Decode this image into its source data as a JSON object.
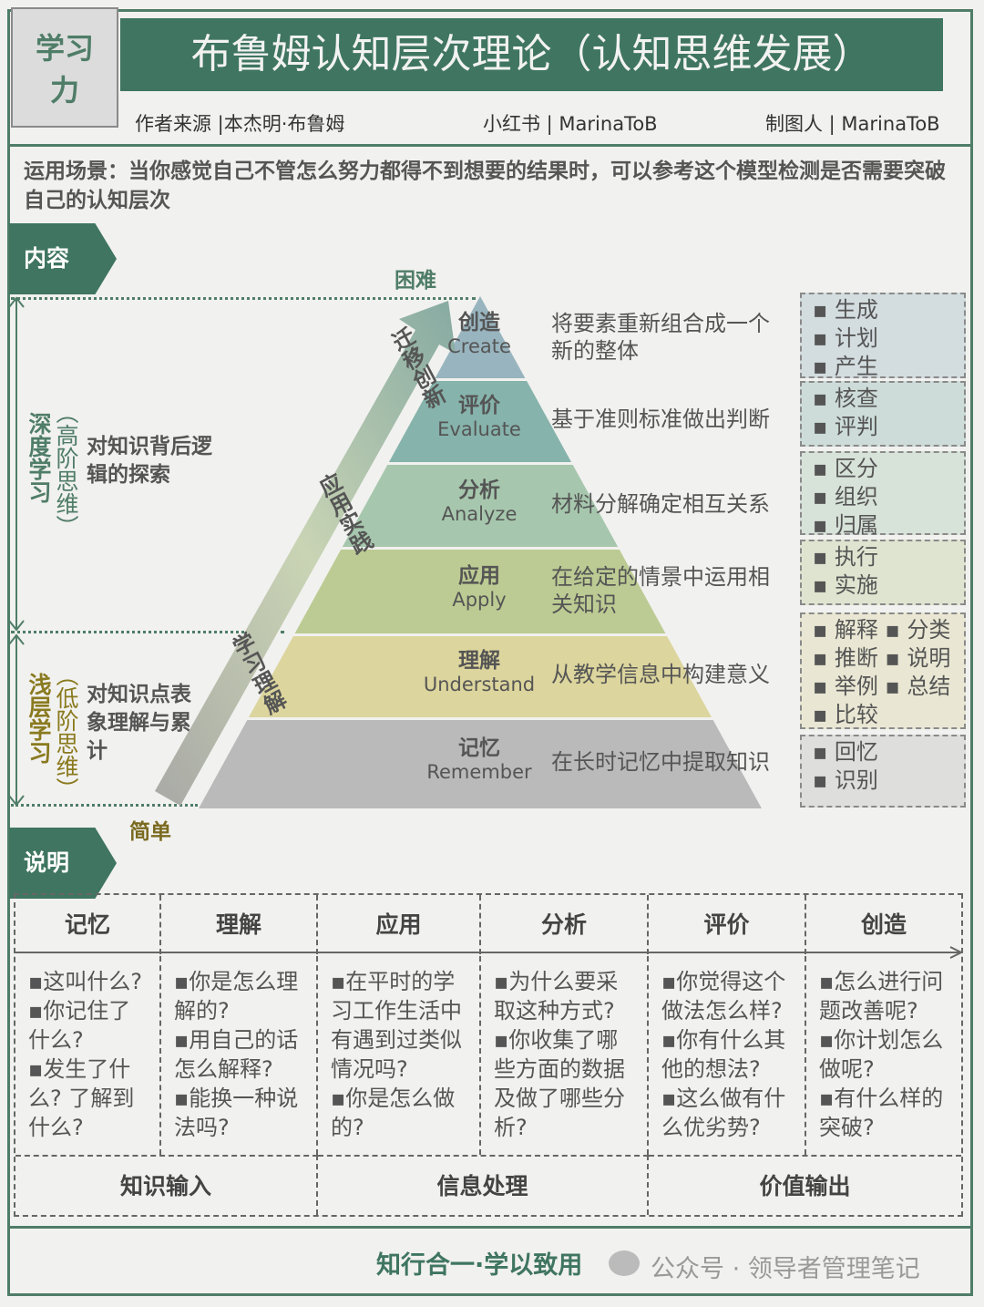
{
  "tag": {
    "line1": "学习",
    "line2": "力"
  },
  "title": "布鲁姆认知层次理论（认知思维发展）",
  "credits": {
    "author": "作者来源 |本杰明·布鲁姆",
    "xhs": "小红书 | MarinaToB",
    "maker": "制图人 | MarinaToB"
  },
  "scenario": "运用场景：当你感觉自己不管怎么努力都得不到想要的结果时，可以参考这个模型检测是否需要突破自己的认知层次",
  "section_content": "内容",
  "section_explain": "说明",
  "difficulty": {
    "hard": "困难",
    "easy": "简单"
  },
  "arrow_labels": [
    "迁移创新",
    "应用实践",
    "学习理解"
  ],
  "deep": {
    "title": "深度学习",
    "paren": "（高阶思维）",
    "desc": "对知识背后逻辑的探索"
  },
  "shallow": {
    "title": "浅层学习",
    "paren": "（低阶思维）",
    "desc": "对知识点表象理解与累计"
  },
  "levels": [
    {
      "cn": "创造",
      "en": "Create",
      "desc": "将要素重新组合成一个新的整体",
      "keywords": [
        "生成",
        "计划",
        "产生"
      ],
      "color": "#98b4bf"
    },
    {
      "cn": "评价",
      "en": "Evaluate",
      "desc": "基于准则标准做出判断",
      "keywords": [
        "核查",
        "评判"
      ],
      "color": "#86b3ab"
    },
    {
      "cn": "分析",
      "en": "Analyze",
      "desc": "材料分解确定相互关系",
      "keywords": [
        "区分",
        "组织",
        "归属"
      ],
      "color": "#a6c7ad"
    },
    {
      "cn": "应用",
      "en": "Apply",
      "desc": "在给定的情景中运用相关知识",
      "keywords": [
        "执行",
        "实施"
      ],
      "color": "#bccb93"
    },
    {
      "cn": "理解",
      "en": "Understand",
      "desc": "从教学信息中构建意义",
      "keywords": [
        "解释 ▪ 分类",
        "推断 ▪ 说明",
        "举例 ▪ 总结",
        "比较"
      ],
      "color": "#dcd59d"
    },
    {
      "cn": "记忆",
      "en": "Remember",
      "desc": "在长时记忆中提取知识",
      "keywords": [
        "回忆",
        "识别"
      ],
      "color": "#bababa"
    }
  ],
  "table": {
    "headers": [
      "记忆",
      "理解",
      "应用",
      "分析",
      "评价",
      "创造"
    ],
    "cells": [
      [
        "这叫什么?",
        "你记住了什么?",
        "发生了什么? 了解到什么?"
      ],
      [
        "你是怎么理解的?",
        "用自己的话怎么解释?",
        "能换一种说法吗?"
      ],
      [
        "在平时的学习工作生活中有遇到过类似情况吗?",
        "你是怎么做的?"
      ],
      [
        "为什么要采取这种方式?",
        "你收集了哪些方面的数据及做了哪些分析?"
      ],
      [
        "你觉得这个做法怎么样?",
        "你有什么其他的想法?",
        "这么做有什么优劣势?"
      ],
      [
        "怎么进行问题改善呢?",
        "你计划怎么做呢?",
        "有什么样的突破?"
      ]
    ],
    "groups": [
      "知识输入",
      "信息处理",
      "价值输出"
    ]
  },
  "footer": {
    "slogan": "知行合一·学以致用",
    "watermark": "公众号 · 领导者管理笔记"
  },
  "colors": {
    "brand": "#3f7561"
  }
}
